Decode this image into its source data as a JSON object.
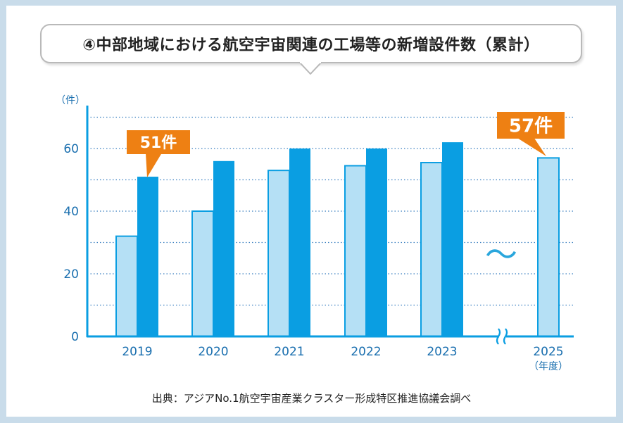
{
  "title": "④中部地域における航空宇宙関連の工場等の新増設件数（累計）",
  "unit_label": "（件）",
  "x_unit_label": "（年度）",
  "source": "出典：アジアNo.1航空宇宙産業クラスター形成特区推進協議会調べ",
  "colors": {
    "dark_bar": "#0a9ee2",
    "light_bar": "#b5e0f5",
    "axis": "#0a9ee2",
    "grid": "#3a7fc0",
    "callout": "#ee8013",
    "tick_text": "#1a6faf"
  },
  "callouts": [
    {
      "text": "51件",
      "category": "2019",
      "value": 51
    },
    {
      "text": "57件",
      "category": "2025",
      "value": 57
    }
  ],
  "break_symbol": "～",
  "chart_data": {
    "type": "bar",
    "categories": [
      "2019",
      "2020",
      "2021",
      "2022",
      "2023",
      "2025"
    ],
    "series": [
      {
        "values": [
          32,
          40,
          53,
          54.5,
          55.5,
          57
        ]
      },
      {
        "values": [
          51,
          56,
          60,
          60,
          62,
          null
        ]
      }
    ],
    "yticks": [
      0,
      20,
      40,
      60
    ],
    "ylim": [
      0,
      74
    ],
    "grid": true,
    "ylabel": "（件）",
    "xlabel": "（年度）"
  }
}
